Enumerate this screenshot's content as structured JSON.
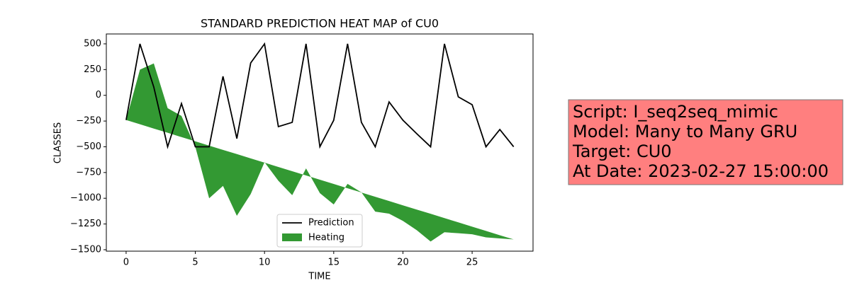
{
  "chart_data": {
    "type": "line",
    "title": "STANDARD PREDICTION HEAT MAP of CU0",
    "x_label": "TIME",
    "y_label": "CLASSES",
    "x": [
      0,
      1,
      2,
      3,
      4,
      5,
      6,
      7,
      8,
      9,
      10,
      11,
      12,
      13,
      14,
      15,
      16,
      17,
      18,
      19,
      20,
      21,
      22,
      23,
      24,
      25,
      26,
      27,
      28
    ],
    "series": [
      {
        "name": "Prediction",
        "color": "#000000",
        "kind": "line",
        "values": [
          -240,
          500,
          80,
          -500,
          -80,
          -500,
          -500,
          184,
          -420,
          314,
          500,
          -304,
          -263,
          500,
          -500,
          -242,
          500,
          -263,
          -500,
          -64,
          -242,
          -373,
          -500,
          500,
          -15,
          -91,
          -500,
          -332,
          -500
        ]
      },
      {
        "name": "Heating",
        "color": "#339933",
        "kind": "area",
        "values": [
          -240,
          250,
          310,
          -125,
          -200,
          -500,
          -1000,
          -880,
          -1170,
          -960,
          -650,
          -830,
          -970,
          -710,
          -950,
          -1060,
          -860,
          -943,
          -1130,
          -1150,
          -1220,
          -1310,
          -1420,
          -1330,
          -1340,
          -1350,
          -1380,
          -1390,
          -1400
        ],
        "baseline": [
          -240,
          -281,
          -323,
          -364,
          -406,
          -447,
          -489,
          -530,
          -571,
          -613,
          -654,
          -696,
          -737,
          -779,
          -820,
          -861,
          -903,
          -944,
          -986,
          -1027,
          -1069,
          -1110,
          -1151,
          -1193,
          -1234,
          -1276,
          -1317,
          -1359,
          -1400
        ]
      }
    ],
    "xlim": [
      -1.43,
      29.4
    ],
    "xticks": [
      0,
      5,
      10,
      15,
      20,
      25
    ],
    "ylim": [
      -1514,
      596
    ],
    "yticks": [
      {
        "value": -1500,
        "label": "−1500"
      },
      {
        "value": -1250,
        "label": "−1250"
      },
      {
        "value": -1000,
        "label": "−1000"
      },
      {
        "value": -750,
        "label": "−750"
      },
      {
        "value": -500,
        "label": "−500"
      },
      {
        "value": -250,
        "label": "−250"
      },
      0,
      250,
      500
    ],
    "grid": false,
    "legend": "lower center",
    "annotation": {
      "lines": [
        "Script: I_seq2seq_mimic",
        "Model: Many to Many GRU",
        "Target: CU0",
        "At Date: 2023-02-27 15:00:00"
      ],
      "color": "#ff7f7f"
    }
  }
}
